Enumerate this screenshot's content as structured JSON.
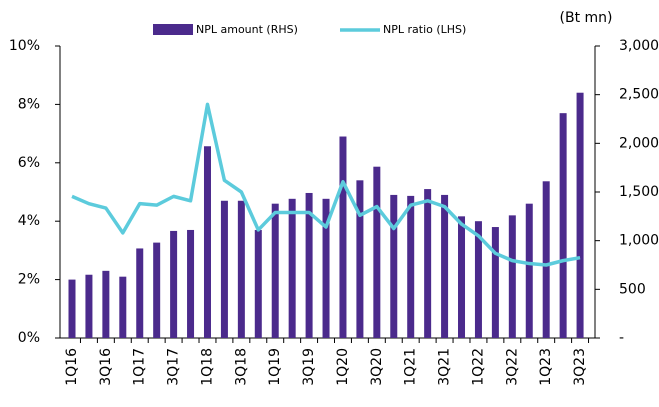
{
  "chart_data": {
    "type": "bar-line",
    "unit_label": "(Bt mn)",
    "categories": [
      "1Q16",
      null,
      "3Q16",
      null,
      "1Q17",
      null,
      "3Q17",
      null,
      "1Q18",
      null,
      "3Q18",
      null,
      "1Q19",
      null,
      "3Q19",
      null,
      "1Q20",
      null,
      "3Q20",
      null,
      "1Q21",
      null,
      "3Q21",
      null,
      "1Q22",
      null,
      "3Q22",
      null,
      "1Q23",
      null,
      "3Q23"
    ],
    "series": [
      {
        "name": "NPL amount (RHS)",
        "type": "bar",
        "axis": "y2",
        "color": "#4b2a8c",
        "values": [
          600,
          650,
          690,
          630,
          920,
          980,
          1100,
          1110,
          1970,
          1410,
          1410,
          1110,
          1380,
          1430,
          1490,
          1430,
          2070,
          1620,
          1760,
          1470,
          1460,
          1530,
          1470,
          1250,
          1200,
          1140,
          1260,
          1380,
          1610,
          2310,
          2520
        ]
      },
      {
        "name": "NPL ratio (LHS)",
        "type": "line",
        "axis": "y",
        "color": "#5ccbdc",
        "values": [
          4.85,
          4.6,
          4.45,
          3.6,
          4.6,
          4.55,
          4.85,
          4.7,
          8.0,
          5.4,
          5.0,
          3.7,
          4.3,
          4.3,
          4.3,
          3.8,
          5.35,
          4.2,
          4.5,
          3.75,
          4.55,
          4.7,
          4.5,
          3.9,
          3.5,
          2.9,
          2.65,
          2.55,
          2.5,
          2.65,
          2.75
        ]
      }
    ],
    "ylim": [
      0,
      10
    ],
    "yticks": [
      {
        "value": 0,
        "label": "0%"
      },
      {
        "value": 2,
        "label": "2%"
      },
      {
        "value": 4,
        "label": "4%"
      },
      {
        "value": 6,
        "label": "6%"
      },
      {
        "value": 8,
        "label": "8%"
      },
      {
        "value": 10,
        "label": "10%"
      }
    ],
    "y2lim": [
      0,
      3000
    ],
    "y2ticks": [
      {
        "value": 0,
        "label": "-"
      },
      {
        "value": 500,
        "label": "500"
      },
      {
        "value": 1000,
        "label": "1,000"
      },
      {
        "value": 1500,
        "label": "1,500"
      },
      {
        "value": 2000,
        "label": "2,000"
      },
      {
        "value": 2500,
        "label": "2,500"
      },
      {
        "value": 3000,
        "label": "3,000"
      }
    ]
  }
}
